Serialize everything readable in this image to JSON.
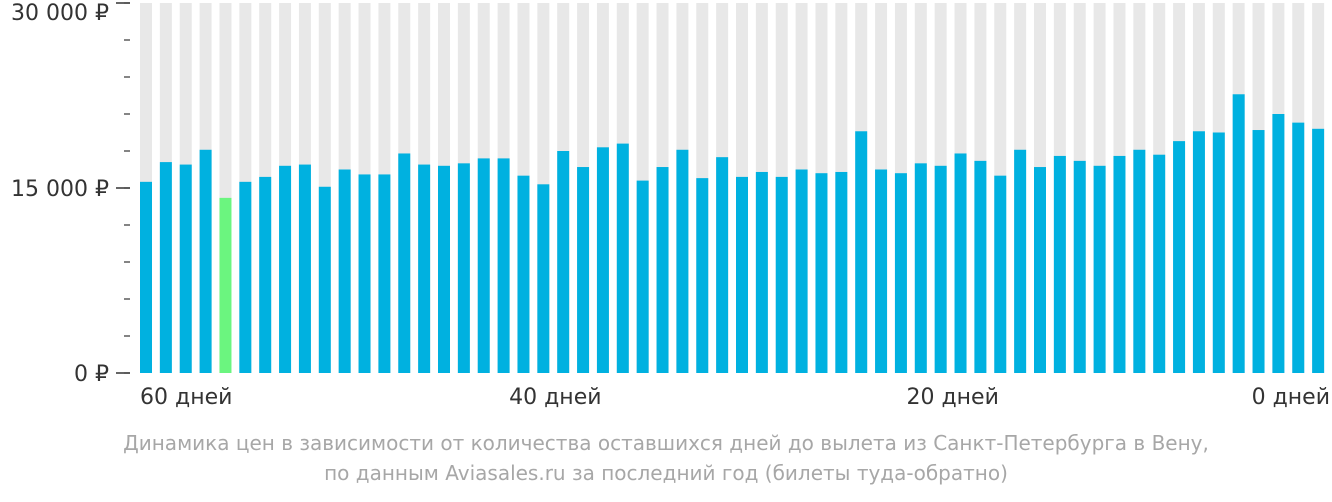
{
  "colors": {
    "bar": "#00b1e0",
    "bar_highlight": "#6bf57f",
    "bar_background": "#e8e8e8",
    "axis_text": "#333333",
    "caption_text": "#a7a7a7"
  },
  "chart_data": {
    "type": "bar",
    "title": "",
    "xlabel": "",
    "ylabel": "",
    "ylim": [
      0,
      30000
    ],
    "y_ticks": [
      {
        "value": 0,
        "label": "0 ₽"
      },
      {
        "value": 15000,
        "label": "15 000 ₽"
      },
      {
        "value": 30000,
        "label": "30 000 ₽"
      }
    ],
    "y_minor_step": 3000,
    "x_ticks": [
      {
        "index": 0,
        "label": "60 дней"
      },
      {
        "index": 20,
        "label": "40 дней"
      },
      {
        "index": 40,
        "label": "20 дней"
      },
      {
        "index": 59,
        "label": "0 дней"
      }
    ],
    "highlight_index": 4,
    "values": [
      15500,
      17100,
      16900,
      18100,
      14200,
      15500,
      15900,
      16800,
      16900,
      15100,
      16500,
      16100,
      16100,
      17800,
      16900,
      16800,
      17000,
      17400,
      17400,
      16000,
      15300,
      18000,
      16700,
      18300,
      18600,
      15600,
      16700,
      18100,
      15800,
      17500,
      15900,
      16300,
      15900,
      16500,
      16200,
      16300,
      19600,
      16500,
      16200,
      17000,
      16800,
      17800,
      17200,
      16000,
      18100,
      16700,
      17600,
      17200,
      16800,
      17600,
      18100,
      17700,
      18800,
      19600,
      19500,
      22600,
      19700,
      21000,
      20300,
      19800
    ]
  },
  "caption": {
    "line1": "Динамика цен в зависимости от количества оставшихся дней до вылета из Санкт-Петербурга в Вену,",
    "line2": "по данным Aviasales.ru за последний год (билеты туда-обратно)"
  }
}
